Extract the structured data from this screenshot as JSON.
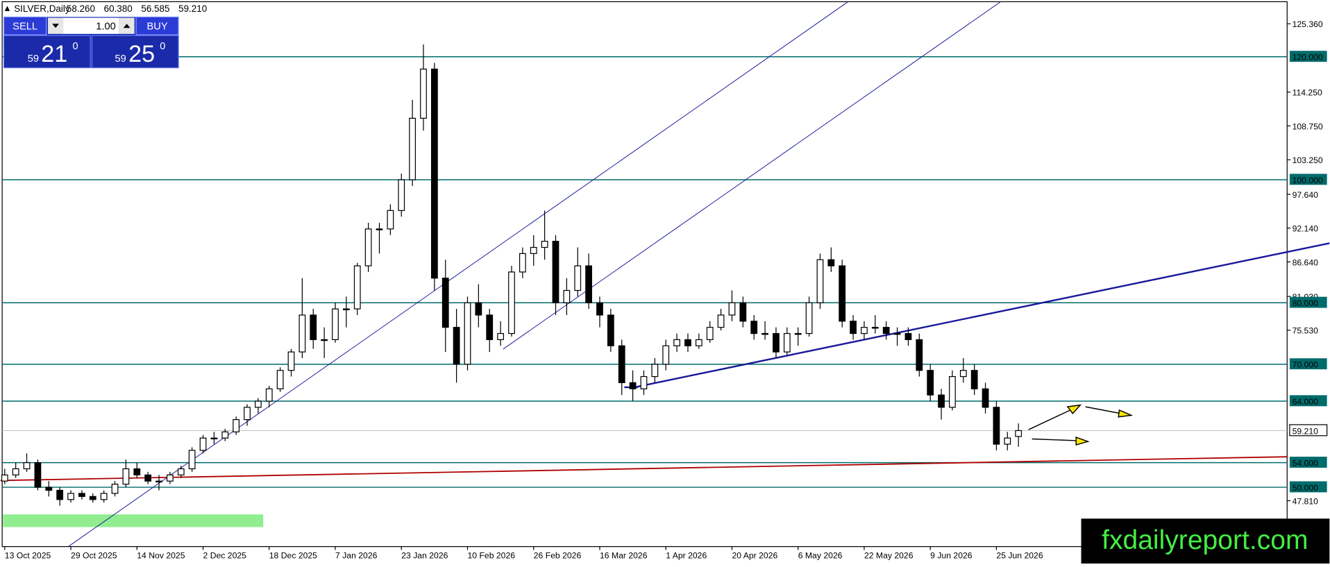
{
  "chart_data": {
    "type": "candlestick",
    "symbol": "SILVER,Daily",
    "ohlc_header": [
      "58.260",
      "60.380",
      "56.585",
      "59.210"
    ],
    "candles": [
      [
        51,
        53,
        50.5,
        52
      ],
      [
        52,
        54,
        51.5,
        53
      ],
      [
        53,
        55.5,
        52.5,
        54
      ],
      [
        54,
        54.5,
        49.5,
        50
      ],
      [
        50,
        51,
        48.5,
        49.5
      ],
      [
        49.5,
        50,
        47,
        48
      ],
      [
        48,
        49.5,
        47.5,
        49
      ],
      [
        49,
        49.5,
        48,
        48.5
      ],
      [
        48.5,
        49,
        47.5,
        48
      ],
      [
        48,
        49.5,
        47.5,
        49
      ],
      [
        49,
        51,
        48.5,
        50.5
      ],
      [
        50.5,
        54.5,
        50,
        53
      ],
      [
        53,
        54,
        51.5,
        52
      ],
      [
        52,
        52.5,
        50.5,
        51
      ],
      [
        51,
        52,
        49.5,
        51
      ],
      [
        51,
        52.5,
        50.5,
        52
      ],
      [
        52,
        53.5,
        51.5,
        53
      ],
      [
        53,
        56.5,
        52.5,
        56
      ],
      [
        56,
        58.5,
        55.5,
        58
      ],
      [
        58,
        59,
        57,
        58
      ],
      [
        58,
        59.5,
        57.5,
        59
      ],
      [
        59,
        61.5,
        58.5,
        61
      ],
      [
        61,
        63.5,
        60,
        63
      ],
      [
        63,
        64.5,
        62,
        64
      ],
      [
        64,
        66.5,
        63,
        66
      ],
      [
        66,
        69.5,
        65.5,
        69
      ],
      [
        69,
        72.5,
        68,
        72
      ],
      [
        72,
        84,
        71,
        78
      ],
      [
        78,
        79,
        72.5,
        74
      ],
      [
        74,
        76,
        71,
        74
      ],
      [
        74,
        80,
        73.5,
        79
      ],
      [
        79,
        81,
        76,
        79
      ],
      [
        79,
        86.5,
        78,
        86
      ],
      [
        86,
        93,
        85,
        92
      ],
      [
        92,
        93,
        88,
        92
      ],
      [
        92,
        96,
        91,
        95
      ],
      [
        95,
        101,
        94,
        100
      ],
      [
        100,
        113,
        99,
        110
      ],
      [
        110,
        122,
        108,
        118
      ],
      [
        118,
        119,
        82,
        84
      ],
      [
        84,
        87,
        72,
        76
      ],
      [
        76,
        79,
        67,
        70
      ],
      [
        70,
        81,
        69,
        80
      ],
      [
        80,
        83,
        76,
        78
      ],
      [
        78,
        79,
        72,
        74
      ],
      [
        74,
        77,
        73,
        75
      ],
      [
        75,
        86,
        74.5,
        85
      ],
      [
        85,
        89,
        84,
        88
      ],
      [
        88,
        91,
        86,
        89
      ],
      [
        89,
        95,
        87,
        90
      ],
      [
        90,
        91,
        78,
        80
      ],
      [
        80,
        84,
        78,
        82
      ],
      [
        82,
        89,
        81,
        86
      ],
      [
        86,
        88,
        79,
        80
      ],
      [
        80,
        81,
        76,
        78
      ],
      [
        78,
        79,
        72,
        73
      ],
      [
        73,
        74,
        65,
        67
      ],
      [
        67,
        69,
        64,
        66
      ],
      [
        66,
        69,
        65,
        68
      ],
      [
        68,
        71,
        67,
        70
      ],
      [
        70,
        74,
        69,
        73
      ],
      [
        73,
        75,
        72,
        74
      ],
      [
        74,
        75,
        72,
        73
      ],
      [
        73,
        75,
        72.5,
        74
      ],
      [
        74,
        77,
        73.5,
        76
      ],
      [
        76,
        79,
        75.5,
        78
      ],
      [
        78,
        82,
        77,
        80
      ],
      [
        80,
        81,
        76,
        77
      ],
      [
        77,
        78,
        74,
        75
      ],
      [
        75,
        77,
        74,
        75
      ],
      [
        75,
        76,
        71,
        72
      ],
      [
        72,
        76,
        71.5,
        75
      ],
      [
        75,
        76,
        73,
        75
      ],
      [
        75,
        81,
        74.5,
        80
      ],
      [
        80,
        88,
        79,
        87
      ],
      [
        87,
        89,
        85,
        86
      ],
      [
        86,
        87,
        76,
        77
      ],
      [
        77,
        78,
        74,
        75
      ],
      [
        75,
        77,
        74,
        76
      ],
      [
        76,
        78,
        75,
        76
      ],
      [
        76,
        77,
        74,
        75
      ],
      [
        75,
        76,
        73,
        75
      ],
      [
        75,
        76,
        73,
        74
      ],
      [
        74,
        75,
        68,
        69
      ],
      [
        69,
        70,
        64,
        65
      ],
      [
        65,
        66,
        61,
        63
      ],
      [
        63,
        69,
        62.5,
        68
      ],
      [
        68,
        71,
        67,
        69
      ],
      [
        69,
        70,
        65,
        66
      ],
      [
        66,
        67,
        62,
        63
      ],
      [
        63,
        64,
        56,
        57
      ],
      [
        57,
        59,
        56,
        58
      ],
      [
        58.26,
        60.38,
        56.585,
        59.21
      ]
    ],
    "x_labels": [
      "13 Oct 2025",
      "29 Oct 2025",
      "14 Nov 2025",
      "2 Dec 2025",
      "18 Dec 2025",
      "7 Jan 2026",
      "23 Jan 2026",
      "10 Feb 2026",
      "26 Feb 2026",
      "16 Mar 2026",
      "1 Apr 2026",
      "20 Apr 2026",
      "6 May 2026",
      "22 May 2026",
      "9 Jun 2026",
      "25 Jun 2026"
    ],
    "ylim": [
      40.35,
      129.23
    ],
    "yticks": [
      {
        "value": 125.36,
        "label": "125.360"
      },
      {
        "value": 114.25,
        "label": "114.250"
      },
      {
        "value": 108.75,
        "label": "108.750"
      },
      {
        "value": 103.25,
        "label": "103.250"
      },
      {
        "value": 97.64,
        "label": "97.640"
      },
      {
        "value": 92.14,
        "label": "92.140"
      },
      {
        "value": 86.64,
        "label": "86.640"
      },
      {
        "value": 81.03,
        "label": "81.030"
      },
      {
        "value": 75.53,
        "label": "75.530"
      },
      {
        "value": 47.81,
        "label": "47.810"
      }
    ],
    "levels": [
      {
        "value": 120,
        "label": "120.000"
      },
      {
        "value": 100,
        "label": "100.000"
      },
      {
        "value": 80,
        "label": "80.000"
      },
      {
        "value": 70,
        "label": "70.000"
      },
      {
        "value": 64,
        "label": "64.000"
      },
      {
        "value": 54,
        "label": "54.000"
      },
      {
        "value": 50,
        "label": "50.000"
      }
    ],
    "level_color": "#006b6b",
    "current_price": {
      "value": 59.21,
      "label": "59.210"
    },
    "up_color": "#ffffff",
    "down_color": "#000000"
  },
  "trade_panel": {
    "sell": "SELL",
    "lots": "1.00",
    "buy": "BUY",
    "bid_small": "59",
    "bid_big": "21",
    "bid_sup": "0",
    "ask_small": "59",
    "ask_big": "25",
    "ask_sup": "0"
  },
  "watermark": "fxdailyreport.com"
}
